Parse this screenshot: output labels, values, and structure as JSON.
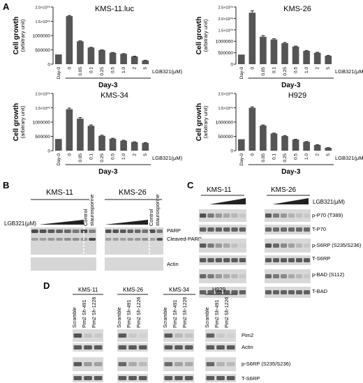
{
  "panels": {
    "A": "A",
    "B": "B",
    "C": "C",
    "D": "D"
  },
  "chart_data": [
    {
      "type": "bar",
      "title": "KMS-11.luc",
      "ylabel": "Cell growth\n(arbitrary unit)",
      "ytick_labels": [
        "0",
        "500000",
        "1000000",
        "1.5×10⁰⁶",
        "2.0×10⁰⁶"
      ],
      "ylim": [
        0,
        2000000
      ],
      "categories": [
        "Day-0",
        "0",
        "0.05",
        "0.1",
        "0.25",
        "0.5",
        "1.0",
        "2",
        "5"
      ],
      "values": [
        340000,
        1680000,
        800000,
        580000,
        490000,
        400000,
        360000,
        270000,
        130000
      ],
      "errors": [
        0,
        20000,
        15000,
        10000,
        10000,
        10000,
        10000,
        10000,
        8000
      ],
      "xlabel_unit": "LGB321(μM)",
      "xlabel": "Day-3"
    },
    {
      "type": "bar",
      "title": "KMS-26",
      "ylabel": "Cell growth\n(arbitrary unit)",
      "ytick_labels": [
        "0",
        "500000",
        "1000000",
        "1.5×10⁰⁶",
        "2.0×10⁰⁶",
        "2.5×10⁰⁶"
      ],
      "ylim": [
        0,
        2500000
      ],
      "categories": [
        "Day-0",
        "0",
        "0.05",
        "0.1",
        "0.25",
        "0.5",
        "1.0",
        "2",
        "5"
      ],
      "values": [
        420000,
        2250000,
        1200000,
        1080000,
        920000,
        770000,
        580000,
        500000,
        370000
      ],
      "errors": [
        0,
        80000,
        50000,
        30000,
        30000,
        20000,
        20000,
        20000,
        15000
      ],
      "xlabel_unit": "LGB321(μM)",
      "xlabel": "Day-3"
    },
    {
      "type": "bar",
      "title": "KMS-34",
      "ylabel": "Cell growth\n(arbitrary unit)",
      "ytick_labels": [
        "0",
        "500000",
        "1000000",
        "1.5×10⁰⁶",
        "2.0×10⁰⁶"
      ],
      "ylim": [
        0,
        2000000
      ],
      "categories": [
        "Day-0",
        "0",
        "0.05",
        "0.1",
        "0.25",
        "0.5",
        "1.0",
        "2",
        "5"
      ],
      "values": [
        410000,
        1450000,
        1120000,
        870000,
        520000,
        420000,
        350000,
        300000,
        270000
      ],
      "errors": [
        0,
        40000,
        40000,
        30000,
        20000,
        15000,
        15000,
        10000,
        10000
      ],
      "xlabel_unit": "LGB321(μM)",
      "xlabel": "Day-3"
    },
    {
      "type": "bar",
      "title": "H929",
      "ylabel": "Cell growth\n(arbitrary unit)",
      "ytick_labels": [
        "0",
        "500000",
        "1000000",
        "1.5×10⁰⁶",
        "2.0×10⁰⁶"
      ],
      "ylim": [
        0,
        2000000
      ],
      "categories": [
        "Day-0",
        "0",
        "0.05",
        "0.1",
        "0.25",
        "0.5",
        "1.0",
        "2",
        "5"
      ],
      "values": [
        400000,
        1500000,
        880000,
        600000,
        510000,
        390000,
        310000,
        200000,
        100000
      ],
      "errors": [
        0,
        30000,
        20000,
        15000,
        15000,
        10000,
        10000,
        10000,
        8000
      ],
      "xlabel_unit": "LGB321(μM)",
      "xlabel": "Day-3"
    }
  ],
  "panelB": {
    "cell_lines": [
      "KMS-11",
      "KMS-26"
    ],
    "treatment_label": "LGB321(μM)",
    "lane_labels": [
      "Control",
      "staurosporine"
    ],
    "band_labels": [
      "PARP",
      "Cleaved-PARP",
      "Actin"
    ]
  },
  "panelC": {
    "cell_lines": [
      "KMS-11",
      "KMS-26"
    ],
    "treatment_label": "LGB321(μM)",
    "band_labels": [
      "p-P70 (T389)",
      "T-P70",
      "p-S6RP (S235/S236)",
      "T-S6RP",
      "p-BAD (S112)",
      "T-BAD"
    ]
  },
  "panelD": {
    "cell_lines": [
      "KMS-11",
      "KMS-26",
      "KMS-34",
      "H929"
    ],
    "lane_labels": [
      "Scramble",
      "Pim2 Sh-491",
      "Pim2 Sh-1226"
    ],
    "band_labels": [
      "Pim2",
      "Actin",
      "p-S6RP (S235/S236)",
      "T-S6RP"
    ]
  },
  "colors": {
    "bar": "#555555",
    "text": "#222222",
    "band_dark": "#3a3a3a",
    "blot_bg": "#cfcfcf"
  }
}
